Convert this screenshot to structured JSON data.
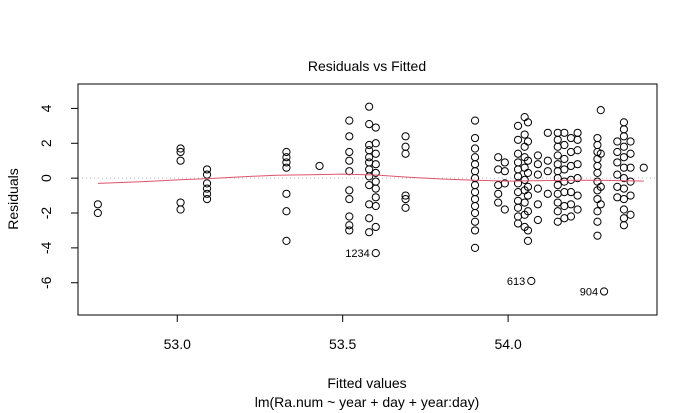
{
  "chart_data": {
    "type": "scatter",
    "title": "Residuals vs Fitted",
    "xlabel": "Fitted values",
    "ylabel": "Residuals",
    "subtitle": "lm(Ra.num ~ year + day + year:day)",
    "xlim": [
      52.7,
      54.45
    ],
    "ylim": [
      -7.85,
      5.4
    ],
    "xticks": [
      53.0,
      53.5,
      54.0
    ],
    "xtick_labels": [
      "53.0",
      "53.5",
      "54.0"
    ],
    "yticks": [
      -6,
      -4,
      -2,
      0,
      2,
      4
    ],
    "ytick_labels": [
      "-6",
      "-4",
      "-2",
      "0",
      "2",
      "4"
    ],
    "grid": false,
    "series": [
      {
        "marker": "open-circle",
        "color": "#000000",
        "points": [
          [
            52.76,
            -1.5
          ],
          [
            52.76,
            -2.0
          ],
          [
            53.01,
            1.7
          ],
          [
            53.01,
            1.5
          ],
          [
            53.01,
            1.0
          ],
          [
            53.01,
            -1.4
          ],
          [
            53.01,
            -1.8
          ],
          [
            53.09,
            0.5
          ],
          [
            53.09,
            0.2
          ],
          [
            53.09,
            -0.3
          ],
          [
            53.09,
            -0.6
          ],
          [
            53.09,
            -0.9
          ],
          [
            53.09,
            -1.2
          ],
          [
            53.33,
            1.5
          ],
          [
            53.33,
            1.2
          ],
          [
            53.33,
            0.9
          ],
          [
            53.33,
            0.6
          ],
          [
            53.33,
            -0.9
          ],
          [
            53.33,
            -1.9
          ],
          [
            53.33,
            -3.6
          ],
          [
            53.43,
            0.7
          ],
          [
            53.52,
            3.3
          ],
          [
            53.52,
            2.4
          ],
          [
            53.52,
            1.5
          ],
          [
            53.52,
            1.0
          ],
          [
            53.52,
            0.4
          ],
          [
            53.52,
            -0.7
          ],
          [
            53.52,
            -1.2
          ],
          [
            53.52,
            -2.2
          ],
          [
            53.52,
            -2.7
          ],
          [
            53.52,
            -3.0
          ],
          [
            53.58,
            4.1
          ],
          [
            53.58,
            3.1
          ],
          [
            53.58,
            1.9
          ],
          [
            53.58,
            1.6
          ],
          [
            53.58,
            1.2
          ],
          [
            53.58,
            0.9
          ],
          [
            53.58,
            0.5
          ],
          [
            53.58,
            0.1
          ],
          [
            53.58,
            -0.4
          ],
          [
            53.58,
            -1.5
          ],
          [
            53.58,
            -2.3
          ],
          [
            53.58,
            -3.1
          ],
          [
            53.6,
            2.9
          ],
          [
            53.6,
            2.0
          ],
          [
            53.6,
            1.4
          ],
          [
            53.6,
            0.8
          ],
          [
            53.6,
            0.3
          ],
          [
            53.6,
            -0.2
          ],
          [
            53.6,
            -0.6
          ],
          [
            53.6,
            -1.1
          ],
          [
            53.6,
            -1.6
          ],
          [
            53.6,
            -2.8
          ],
          [
            53.6,
            -4.3
          ],
          [
            53.69,
            2.4
          ],
          [
            53.69,
            1.8
          ],
          [
            53.69,
            1.4
          ],
          [
            53.69,
            -1.0
          ],
          [
            53.69,
            -1.2
          ],
          [
            53.69,
            -1.7
          ],
          [
            53.9,
            3.3
          ],
          [
            53.9,
            2.3
          ],
          [
            53.9,
            1.7
          ],
          [
            53.9,
            1.2
          ],
          [
            53.9,
            0.8
          ],
          [
            53.9,
            0.4
          ],
          [
            53.9,
            0.0
          ],
          [
            53.9,
            -0.4
          ],
          [
            53.9,
            -0.8
          ],
          [
            53.9,
            -1.2
          ],
          [
            53.9,
            -1.6
          ],
          [
            53.9,
            -2.0
          ],
          [
            53.9,
            -2.5
          ],
          [
            53.9,
            -3.0
          ],
          [
            53.9,
            -4.0
          ],
          [
            53.97,
            1.2
          ],
          [
            53.97,
            0.5
          ],
          [
            53.97,
            -0.4
          ],
          [
            53.97,
            -0.9
          ],
          [
            53.97,
            -1.4
          ],
          [
            53.99,
            0.9
          ],
          [
            53.99,
            0.4
          ],
          [
            53.99,
            -0.3
          ],
          [
            53.99,
            -1.8
          ],
          [
            54.03,
            3.0
          ],
          [
            54.03,
            2.2
          ],
          [
            54.03,
            1.4
          ],
          [
            54.03,
            0.9
          ],
          [
            54.03,
            0.5
          ],
          [
            54.03,
            0.1
          ],
          [
            54.03,
            -0.3
          ],
          [
            54.03,
            -0.8
          ],
          [
            54.03,
            -1.3
          ],
          [
            54.03,
            -1.7
          ],
          [
            54.03,
            -2.2
          ],
          [
            54.03,
            -2.6
          ],
          [
            54.05,
            3.5
          ],
          [
            54.05,
            2.5
          ],
          [
            54.05,
            1.8
          ],
          [
            54.05,
            1.2
          ],
          [
            54.05,
            0.6
          ],
          [
            54.05,
            -0.1
          ],
          [
            54.05,
            -0.7
          ],
          [
            54.05,
            -1.4
          ],
          [
            54.05,
            -2.1
          ],
          [
            54.05,
            -2.8
          ],
          [
            54.06,
            3.2
          ],
          [
            54.06,
            2.1
          ],
          [
            54.06,
            1.0
          ],
          [
            54.06,
            0.3
          ],
          [
            54.06,
            -0.5
          ],
          [
            54.06,
            -1.0
          ],
          [
            54.06,
            -1.9
          ],
          [
            54.06,
            -3.0
          ],
          [
            54.06,
            -3.6
          ],
          [
            54.07,
            -5.9
          ],
          [
            54.09,
            1.3
          ],
          [
            54.09,
            0.8
          ],
          [
            54.09,
            0.2
          ],
          [
            54.09,
            -0.6
          ],
          [
            54.09,
            -1.5
          ],
          [
            54.09,
            -2.4
          ],
          [
            54.12,
            2.6
          ],
          [
            54.12,
            1.0
          ],
          [
            54.12,
            0.4
          ],
          [
            54.12,
            -0.9
          ],
          [
            54.15,
            2.6
          ],
          [
            54.15,
            2.2
          ],
          [
            54.15,
            1.8
          ],
          [
            54.15,
            1.3
          ],
          [
            54.15,
            0.8
          ],
          [
            54.15,
            0.4
          ],
          [
            54.15,
            0.0
          ],
          [
            54.15,
            -0.4
          ],
          [
            54.15,
            -0.9
          ],
          [
            54.15,
            -1.4
          ],
          [
            54.15,
            -1.9
          ],
          [
            54.15,
            -2.5
          ],
          [
            54.17,
            2.6
          ],
          [
            54.17,
            1.9
          ],
          [
            54.17,
            1.1
          ],
          [
            54.17,
            0.5
          ],
          [
            54.17,
            -0.2
          ],
          [
            54.17,
            -0.8
          ],
          [
            54.17,
            -1.6
          ],
          [
            54.17,
            -2.3
          ],
          [
            54.19,
            2.3
          ],
          [
            54.19,
            1.5
          ],
          [
            54.19,
            0.7
          ],
          [
            54.19,
            -0.1
          ],
          [
            54.19,
            -0.8
          ],
          [
            54.19,
            -1.5
          ],
          [
            54.19,
            -2.2
          ],
          [
            54.21,
            2.6
          ],
          [
            54.21,
            2.2
          ],
          [
            54.21,
            1.6
          ],
          [
            54.21,
            0.8
          ],
          [
            54.21,
            0.0
          ],
          [
            54.21,
            -1.0
          ],
          [
            54.21,
            -1.8
          ],
          [
            54.27,
            2.3
          ],
          [
            54.27,
            1.9
          ],
          [
            54.27,
            1.5
          ],
          [
            54.27,
            1.1
          ],
          [
            54.27,
            0.7
          ],
          [
            54.27,
            0.3
          ],
          [
            54.27,
            -0.2
          ],
          [
            54.27,
            -0.7
          ],
          [
            54.27,
            -1.2
          ],
          [
            54.27,
            -1.9
          ],
          [
            54.27,
            -2.5
          ],
          [
            54.27,
            -3.3
          ],
          [
            54.28,
            3.9
          ],
          [
            54.28,
            1.4
          ],
          [
            54.28,
            -0.5
          ],
          [
            54.28,
            -1.5
          ],
          [
            54.29,
            -6.5
          ],
          [
            54.33,
            2.1
          ],
          [
            54.33,
            1.5
          ],
          [
            54.33,
            0.9
          ],
          [
            54.33,
            0.2
          ],
          [
            54.33,
            -0.5
          ],
          [
            54.33,
            -1.1
          ],
          [
            54.35,
            3.2
          ],
          [
            54.35,
            2.8
          ],
          [
            54.35,
            2.4
          ],
          [
            54.35,
            1.8
          ],
          [
            54.35,
            1.2
          ],
          [
            54.35,
            0.6
          ],
          [
            54.35,
            0.0
          ],
          [
            54.35,
            -0.6
          ],
          [
            54.35,
            -1.2
          ],
          [
            54.35,
            -1.8
          ],
          [
            54.35,
            -2.3
          ],
          [
            54.35,
            -2.7
          ],
          [
            54.37,
            2.1
          ],
          [
            54.37,
            1.4
          ],
          [
            54.37,
            0.6
          ],
          [
            54.37,
            -0.2
          ],
          [
            54.37,
            -1.0
          ],
          [
            54.37,
            -2.1
          ],
          [
            54.41,
            0.6
          ]
        ]
      }
    ],
    "smooth_line": {
      "color": "#df536b",
      "points": [
        [
          52.76,
          -0.3
        ],
        [
          52.9,
          -0.2
        ],
        [
          53.0,
          -0.1
        ],
        [
          53.1,
          -0.02
        ],
        [
          53.2,
          0.08
        ],
        [
          53.3,
          0.17
        ],
        [
          53.4,
          0.2
        ],
        [
          53.5,
          0.23
        ],
        [
          53.6,
          0.18
        ],
        [
          53.7,
          0.05
        ],
        [
          53.8,
          -0.05
        ],
        [
          53.9,
          -0.12
        ],
        [
          54.0,
          -0.17
        ],
        [
          54.1,
          -0.14
        ],
        [
          54.2,
          -0.12
        ],
        [
          54.3,
          -0.13
        ],
        [
          54.41,
          -0.17
        ]
      ]
    },
    "reference_line": {
      "y": 0,
      "color": "#bebebe",
      "style": "dotted"
    },
    "point_labels": [
      {
        "text": "1234",
        "x": 53.6,
        "y": -4.3
      },
      {
        "text": "613",
        "x": 54.07,
        "y": -5.9
      },
      {
        "text": "904",
        "x": 54.29,
        "y": -6.5
      }
    ]
  }
}
